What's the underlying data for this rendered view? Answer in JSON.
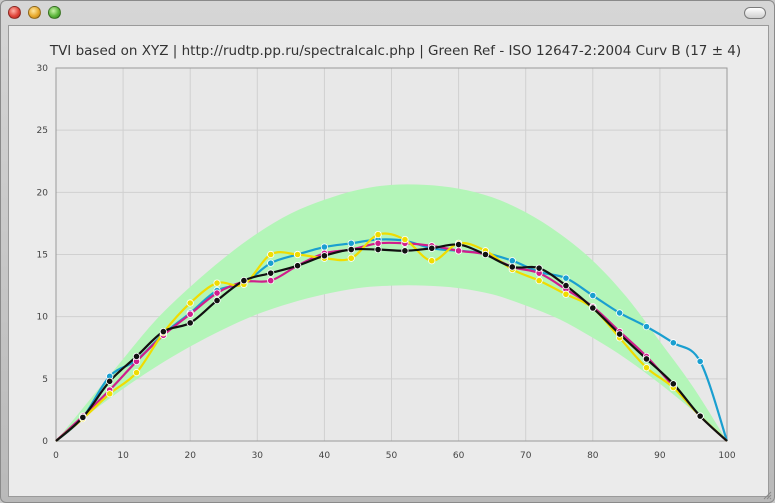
{
  "window": {
    "title": ""
  },
  "colors": {
    "band": "#b3f5b8",
    "cyan": "#1a9fd0",
    "magenta": "#d01e8c",
    "yellow": "#f0dc00",
    "black": "#111111",
    "grid": "#d0d0d0"
  },
  "chart_data": {
    "type": "line",
    "title": "TVI based on XYZ | http://rudtp.pp.ru/spectralcalc.php | Green Ref - ISO 12647-2:2004 Curv B (17 ± 4)",
    "xlabel": "",
    "ylabel": "",
    "xlim": [
      0,
      100
    ],
    "ylim": [
      0,
      30
    ],
    "xticks": [
      0,
      10,
      20,
      30,
      40,
      50,
      60,
      70,
      80,
      90,
      100
    ],
    "yticks": [
      0,
      5,
      10,
      15,
      20,
      25,
      30
    ],
    "grid": true,
    "legend": "none",
    "tolerance_band": {
      "x": [
        0,
        5,
        10,
        15,
        20,
        25,
        30,
        35,
        40,
        45,
        50,
        55,
        60,
        65,
        70,
        75,
        80,
        85,
        90,
        95,
        100
      ],
      "upper": [
        0,
        3.3,
        6.6,
        9.8,
        12.4,
        14.7,
        16.7,
        18.3,
        19.4,
        20.2,
        20.6,
        20.6,
        20.3,
        19.6,
        18.4,
        16.7,
        14.5,
        11.6,
        8.0,
        4.3,
        0
      ],
      "lower": [
        0,
        2.2,
        4.2,
        6.0,
        7.6,
        9.0,
        10.2,
        11.1,
        11.8,
        12.3,
        12.5,
        12.5,
        12.3,
        11.8,
        10.9,
        9.8,
        8.3,
        6.6,
        4.6,
        2.4,
        0
      ]
    },
    "series": [
      {
        "color": "#1a9fd0",
        "points": [
          [
            0,
            0
          ],
          [
            4,
            1.9
          ],
          [
            8,
            5.2
          ],
          [
            12,
            6.5
          ],
          [
            16,
            8.6
          ],
          [
            20,
            10.3
          ],
          [
            24,
            12.1
          ],
          [
            28,
            12.7
          ],
          [
            32,
            14.3
          ],
          [
            36,
            15.0
          ],
          [
            40,
            15.6
          ],
          [
            44,
            15.9
          ],
          [
            48,
            16.2
          ],
          [
            52,
            16.1
          ],
          [
            56,
            15.5
          ],
          [
            60,
            15.3
          ],
          [
            64,
            15.1
          ],
          [
            68,
            14.5
          ],
          [
            72,
            13.6
          ],
          [
            76,
            13.1
          ],
          [
            80,
            11.7
          ],
          [
            84,
            10.3
          ],
          [
            88,
            9.2
          ],
          [
            92,
            7.9
          ],
          [
            96,
            6.4
          ],
          [
            100,
            0
          ]
        ]
      },
      {
        "color": "#d01e8c",
        "points": [
          [
            0,
            0
          ],
          [
            4,
            2.0
          ],
          [
            8,
            4.1
          ],
          [
            12,
            6.4
          ],
          [
            16,
            8.5
          ],
          [
            20,
            10.2
          ],
          [
            24,
            11.9
          ],
          [
            28,
            12.8
          ],
          [
            32,
            12.9
          ],
          [
            36,
            14.1
          ],
          [
            40,
            15.1
          ],
          [
            44,
            15.4
          ],
          [
            48,
            15.9
          ],
          [
            52,
            15.9
          ],
          [
            56,
            15.7
          ],
          [
            60,
            15.3
          ],
          [
            64,
            15.0
          ],
          [
            68,
            14.0
          ],
          [
            72,
            13.5
          ],
          [
            76,
            12.2
          ],
          [
            80,
            10.8
          ],
          [
            84,
            8.8
          ],
          [
            88,
            6.8
          ],
          [
            92,
            4.4
          ],
          [
            96,
            2.0
          ],
          [
            100,
            0
          ]
        ]
      },
      {
        "color": "#f0dc00",
        "points": [
          [
            0,
            0
          ],
          [
            4,
            1.8
          ],
          [
            8,
            3.8
          ],
          [
            12,
            5.5
          ],
          [
            16,
            8.7
          ],
          [
            20,
            11.1
          ],
          [
            24,
            12.7
          ],
          [
            28,
            12.6
          ],
          [
            32,
            15.0
          ],
          [
            36,
            15.0
          ],
          [
            40,
            14.7
          ],
          [
            44,
            14.7
          ],
          [
            48,
            16.6
          ],
          [
            52,
            16.2
          ],
          [
            56,
            14.5
          ],
          [
            60,
            15.9
          ],
          [
            64,
            15.3
          ],
          [
            68,
            13.8
          ],
          [
            72,
            12.9
          ],
          [
            76,
            11.8
          ],
          [
            80,
            10.7
          ],
          [
            84,
            8.3
          ],
          [
            88,
            5.9
          ],
          [
            92,
            4.3
          ],
          [
            96,
            2.0
          ],
          [
            100,
            0
          ]
        ]
      },
      {
        "color": "#111111",
        "points": [
          [
            0,
            0
          ],
          [
            4,
            1.9
          ],
          [
            8,
            4.8
          ],
          [
            12,
            6.8
          ],
          [
            16,
            8.8
          ],
          [
            20,
            9.5
          ],
          [
            24,
            11.3
          ],
          [
            28,
            12.9
          ],
          [
            32,
            13.5
          ],
          [
            36,
            14.1
          ],
          [
            40,
            14.9
          ],
          [
            44,
            15.4
          ],
          [
            48,
            15.4
          ],
          [
            52,
            15.3
          ],
          [
            56,
            15.5
          ],
          [
            60,
            15.8
          ],
          [
            64,
            15.0
          ],
          [
            68,
            14.0
          ],
          [
            72,
            13.9
          ],
          [
            76,
            12.5
          ],
          [
            80,
            10.7
          ],
          [
            84,
            8.6
          ],
          [
            88,
            6.6
          ],
          [
            92,
            4.6
          ],
          [
            96,
            2.0
          ],
          [
            100,
            0
          ]
        ]
      }
    ]
  }
}
